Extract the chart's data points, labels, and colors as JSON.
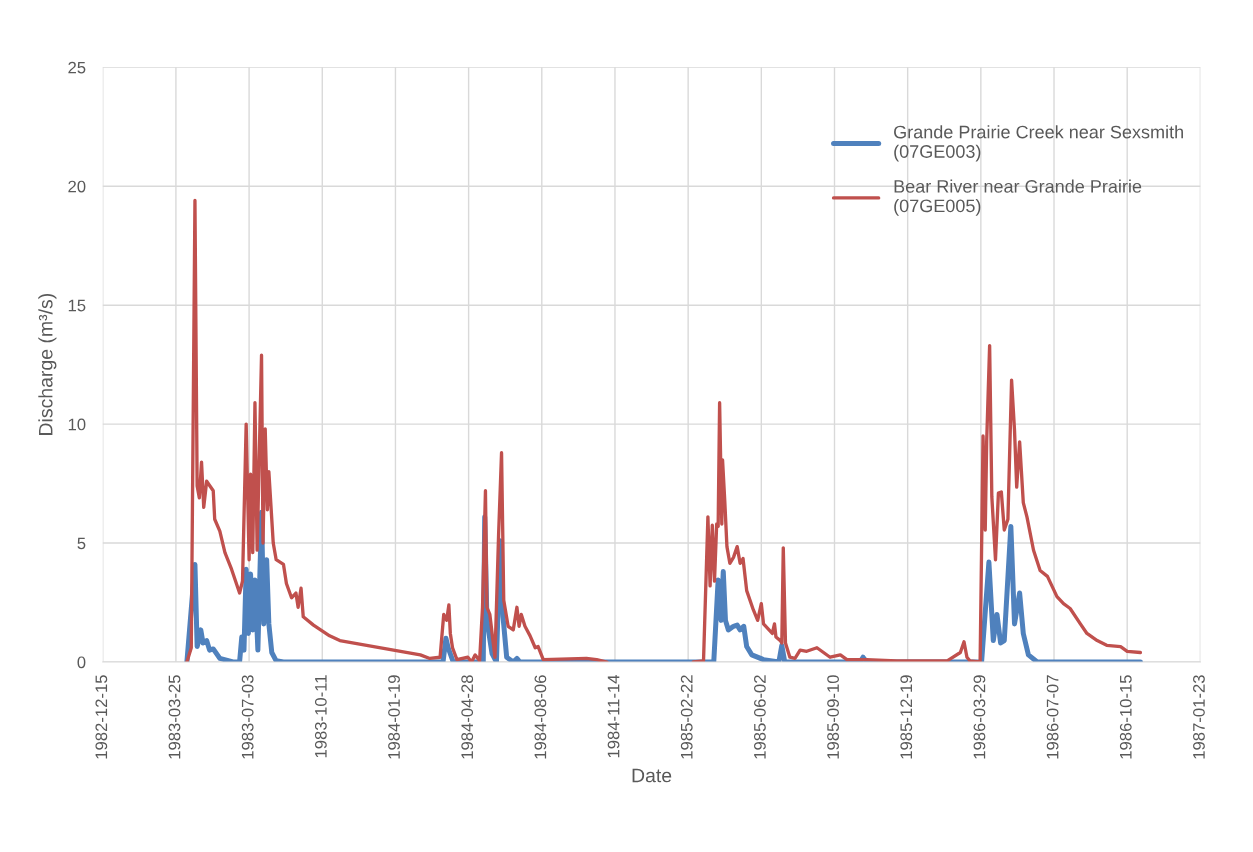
{
  "chart_data": {
    "type": "line",
    "xlabel": "Date",
    "ylabel": "Discharge (m³/s)",
    "xlim": [
      "1982-12-15",
      "1987-01-23"
    ],
    "xticks": [
      "1982-12-15",
      "1983-03-25",
      "1983-07-03",
      "1983-10-11",
      "1984-01-19",
      "1984-04-28",
      "1984-08-06",
      "1984-11-14",
      "1985-02-22",
      "1985-06-02",
      "1985-09-10",
      "1985-12-19",
      "1986-03-29",
      "1986-07-07",
      "1986-10-15",
      "1987-01-23"
    ],
    "ylim": [
      0,
      25
    ],
    "yticks": [
      0,
      5,
      10,
      15,
      20,
      25
    ],
    "grid": true,
    "legend": "top right",
    "marker": "none",
    "line_style": "solid",
    "series": [
      {
        "name": "Grande Prairie Creek near Sexsmith\n(07GE003)",
        "color": "#4f81bd",
        "x": [
          "1983-04-09",
          "1983-04-20",
          "1983-04-23",
          "1983-04-26",
          "1983-04-28",
          "1983-05-01",
          "1983-05-06",
          "1983-05-10",
          "1983-05-15",
          "1983-05-24",
          "1983-06-11",
          "1983-06-20",
          "1983-06-23",
          "1983-06-26",
          "1983-06-29",
          "1983-07-02",
          "1983-07-05",
          "1983-07-08",
          "1983-07-11",
          "1983-07-15",
          "1983-07-20",
          "1983-07-23",
          "1983-07-27",
          "1983-07-30",
          "1983-08-03",
          "1983-08-09",
          "1983-08-19",
          "1983-12-01",
          "1984-03-24",
          "1984-03-28",
          "1984-03-31",
          "1984-04-07",
          "1984-05-18",
          "1984-05-20",
          "1984-05-23",
          "1984-05-30",
          "1984-06-05",
          "1984-06-10",
          "1984-06-14",
          "1984-06-19",
          "1984-06-28",
          "1984-07-03",
          "1984-07-07",
          "1984-11-03",
          "1985-03-01",
          "1985-03-29",
          "1985-04-04",
          "1985-04-08",
          "1985-04-11",
          "1985-04-14",
          "1985-04-18",
          "1985-04-25",
          "1985-04-30",
          "1985-05-04",
          "1985-05-09",
          "1985-05-13",
          "1985-05-20",
          "1985-06-05",
          "1985-06-26",
          "1985-06-30",
          "1985-07-04",
          "1985-10-15",
          "1985-10-19",
          "1985-10-24",
          "1986-03-30",
          "1986-04-09",
          "1986-04-15",
          "1986-04-20",
          "1986-04-25",
          "1986-04-30",
          "1986-05-09",
          "1986-05-14",
          "1986-05-21",
          "1986-05-26",
          "1986-06-02",
          "1986-06-14",
          "1986-11-02"
        ],
        "values": [
          0,
          4.1,
          0.65,
          1.0,
          1.35,
          0.8,
          0.9,
          0.5,
          0.55,
          0.15,
          0,
          0,
          1.05,
          0.5,
          3.9,
          1.2,
          3.7,
          1.35,
          3.45,
          0.5,
          6.3,
          1.6,
          4.3,
          1.6,
          0.4,
          0.05,
          0,
          0,
          0,
          1.0,
          0.6,
          0,
          0,
          6.1,
          1.75,
          0.35,
          0,
          5.1,
          1.9,
          0.2,
          0,
          0.15,
          0,
          0,
          0,
          0,
          3.45,
          1.75,
          3.8,
          1.75,
          1.35,
          1.5,
          1.55,
          1.35,
          1.5,
          0.65,
          0.3,
          0.1,
          0,
          0.7,
          0,
          0,
          0.2,
          0,
          0,
          4.2,
          0.9,
          2.0,
          0.8,
          0.9,
          5.7,
          1.6,
          2.9,
          1.2,
          0.3,
          0,
          0
        ]
      },
      {
        "name": "Bear River near Grande Prairie\n(07GE005)",
        "color": "#c0504d",
        "x": [
          "1983-04-09",
          "1983-04-15",
          "1983-04-20",
          "1983-04-23",
          "1983-04-26",
          "1983-04-29",
          "1983-05-02",
          "1983-05-06",
          "1983-05-15",
          "1983-05-17",
          "1983-05-24",
          "1983-05-31",
          "1983-06-09",
          "1983-06-20",
          "1983-06-24",
          "1983-06-29",
          "1983-07-03",
          "1983-07-05",
          "1983-07-08",
          "1983-07-11",
          "1983-07-14",
          "1983-07-20",
          "1983-07-22",
          "1983-07-25",
          "1983-07-28",
          "1983-07-30",
          "1983-08-05",
          "1983-08-09",
          "1983-08-19",
          "1983-08-23",
          "1983-08-30",
          "1983-09-05",
          "1983-09-08",
          "1983-09-12",
          "1983-09-15",
          "1983-09-29",
          "1983-10-21",
          "1983-11-04",
          "1984-02-22",
          "1984-03-06",
          "1984-03-20",
          "1984-03-25",
          "1984-03-29",
          "1984-04-01",
          "1984-04-03",
          "1984-04-06",
          "1984-04-12",
          "1984-04-27",
          "1984-05-02",
          "1984-05-07",
          "1984-05-13",
          "1984-05-17",
          "1984-05-21",
          "1984-05-23",
          "1984-05-27",
          "1984-06-03",
          "1984-06-08",
          "1984-06-12",
          "1984-06-15",
          "1984-06-21",
          "1984-06-28",
          "1984-07-03",
          "1984-07-06",
          "1984-07-09",
          "1984-07-14",
          "1984-07-21",
          "1984-07-28",
          "1984-08-01",
          "1984-08-08",
          "1984-10-06",
          "1984-10-20",
          "1984-11-03",
          "1985-01-01",
          "1985-03-01",
          "1985-03-15",
          "1985-03-21",
          "1985-03-24",
          "1985-03-27",
          "1985-03-30",
          "1985-04-02",
          "1985-04-04",
          "1985-04-06",
          "1985-04-09",
          "1985-04-10",
          "1985-04-13",
          "1985-04-16",
          "1985-04-20",
          "1985-04-25",
          "1985-04-30",
          "1985-05-04",
          "1985-05-08",
          "1985-05-13",
          "1985-05-22",
          "1985-05-28",
          "1985-06-02",
          "1985-06-05",
          "1985-06-17",
          "1985-06-20",
          "1985-06-22",
          "1985-06-28",
          "1985-06-30",
          "1985-07-02",
          "1985-07-05",
          "1985-07-11",
          "1985-07-18",
          "1985-07-25",
          "1985-08-03",
          "1985-08-17",
          "1985-08-26",
          "1985-09-04",
          "1985-09-18",
          "1985-09-27",
          "1985-10-24",
          "1985-12-04",
          "1986-02-11",
          "1986-03-01",
          "1986-03-06",
          "1986-03-10",
          "1986-03-14",
          "1986-03-28",
          "1986-04-01",
          "1986-04-04",
          "1986-04-06",
          "1986-04-10",
          "1986-04-13",
          "1986-04-18",
          "1986-04-22",
          "1986-04-26",
          "1986-04-30",
          "1986-05-05",
          "1986-05-10",
          "1986-05-14",
          "1986-05-17",
          "1986-05-21",
          "1986-05-26",
          "1986-05-31",
          "1986-06-09",
          "1986-06-18",
          "1986-06-28",
          "1986-07-11",
          "1986-07-20",
          "1986-07-29",
          "1986-08-12",
          "1986-08-21",
          "1986-09-04",
          "1986-09-17",
          "1986-10-06",
          "1986-10-15",
          "1986-11-02"
        ],
        "values": [
          0,
          0.6,
          19.4,
          7.4,
          6.9,
          8.4,
          6.5,
          7.6,
          7.2,
          6.0,
          5.5,
          4.6,
          3.9,
          2.9,
          3.4,
          10.0,
          4.3,
          7.9,
          4.6,
          10.9,
          4.7,
          12.9,
          5.0,
          9.8,
          6.4,
          8.0,
          5.0,
          4.3,
          4.1,
          3.3,
          2.7,
          2.9,
          2.3,
          3.1,
          1.9,
          1.55,
          1.1,
          0.9,
          0.3,
          0.15,
          0.2,
          2.0,
          1.75,
          2.4,
          1.2,
          0.6,
          0.1,
          0.2,
          0,
          0.3,
          0.05,
          2.3,
          7.2,
          2.3,
          2.0,
          0.2,
          5.4,
          8.8,
          2.6,
          1.5,
          1.35,
          2.3,
          1.5,
          2.0,
          1.5,
          1.1,
          0.6,
          0.65,
          0.1,
          0.15,
          0.1,
          0,
          null,
          0,
          0.05,
          6.1,
          3.2,
          5.75,
          3.4,
          5.8,
          5.7,
          10.9,
          5.8,
          8.5,
          6.8,
          4.85,
          4.15,
          4.4,
          4.85,
          4.15,
          4.35,
          3.0,
          2.2,
          1.75,
          2.45,
          1.6,
          1.2,
          1.6,
          1.05,
          0.9,
          0.8,
          4.8,
          0.8,
          0.2,
          0.15,
          0.5,
          0.45,
          0.6,
          0.4,
          0.2,
          0.3,
          0.1,
          0.1,
          0.05,
          0.05,
          0.4,
          0.85,
          0.2,
          0.05,
          0,
          9.5,
          5.55,
          9.3,
          13.3,
          6.95,
          4.3,
          7.1,
          7.15,
          5.55,
          6.0,
          11.85,
          9.75,
          7.35,
          9.25,
          6.7,
          6.1,
          4.7,
          3.85,
          3.6,
          2.75,
          2.45,
          2.25,
          1.6,
          1.2,
          0.9,
          0.7,
          0.65,
          0.45,
          0.4
        ]
      }
    ]
  }
}
